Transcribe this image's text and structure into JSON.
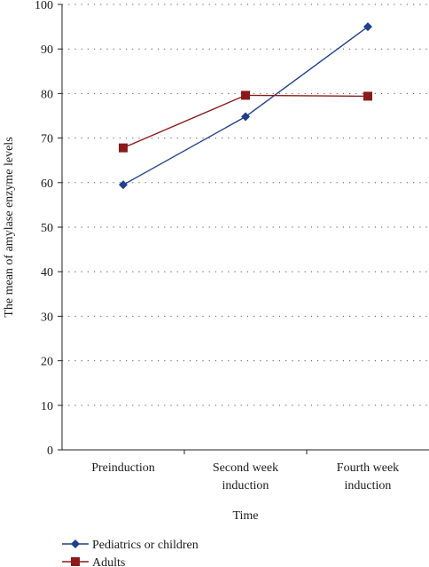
{
  "chart_data": {
    "type": "line",
    "xlabel": "Time",
    "ylabel": "The mean of amylase enzyme levels",
    "ylim": [
      0,
      100
    ],
    "yticks": [
      0,
      10,
      20,
      30,
      40,
      50,
      60,
      70,
      80,
      90,
      100
    ],
    "categories": [
      [
        "Preinduction"
      ],
      [
        "Second week",
        "induction"
      ],
      [
        "Fourth week",
        "induction"
      ]
    ],
    "grid": "horizontal dotted",
    "legend_position": "bottom-left",
    "series": [
      {
        "name": "Pediatrics or children",
        "marker": "diamond",
        "color": "#1f3f8f",
        "values": [
          59.5,
          74.8,
          95
        ]
      },
      {
        "name": "Adults",
        "marker": "square",
        "color": "#8b1a1a",
        "values": [
          67.8,
          79.6,
          79.4
        ]
      }
    ]
  }
}
